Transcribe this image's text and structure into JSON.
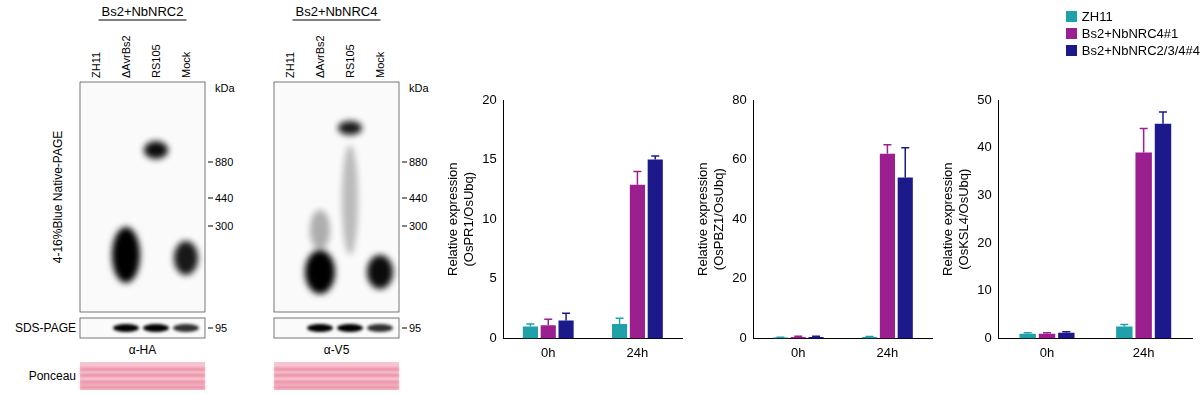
{
  "blots": {
    "row_labels": {
      "native": "4-16%Blue Native-PAGE",
      "sds": "SDS-PAGE",
      "stain": "Ponceau"
    },
    "marker_unit": "kDa",
    "panels": [
      {
        "title": "Bs2+NbNRC2",
        "lanes": [
          "ZH11",
          "ΔAvrBs2",
          "RS105",
          "Mock"
        ],
        "markers": [
          880,
          440,
          300
        ],
        "sds_marker": 95,
        "antibody": "α-HA"
      },
      {
        "title": "Bs2+NbNRC4",
        "lanes": [
          "ZH11",
          "ΔAvrBs2",
          "RS105",
          "Mock"
        ],
        "markers": [
          880,
          440,
          300
        ],
        "sds_marker": 95,
        "antibody": "α-V5"
      }
    ]
  },
  "chart_data": [
    {
      "type": "bar",
      "y_label": [
        "Relative expression",
        "(OsPR1/OsUbq)"
      ],
      "categories": [
        "0h",
        "24h"
      ],
      "series": [
        {
          "name": "ZH11",
          "color": "#20a0a8",
          "values": [
            1.0,
            1.2
          ],
          "errors": [
            0.2,
            0.5
          ]
        },
        {
          "name": "Bs2+NbNRC4#1",
          "color": "#9c1f8f",
          "values": [
            1.1,
            12.9
          ],
          "errors": [
            0.5,
            1.1
          ]
        },
        {
          "name": "Bs2+NbNRC2/3/4#4",
          "color": "#1c1a8a",
          "values": [
            1.5,
            15.0
          ],
          "errors": [
            0.6,
            0.3
          ]
        }
      ],
      "ylim": [
        0,
        20
      ],
      "yticks": [
        0,
        5,
        10,
        15,
        20
      ],
      "grid": false
    },
    {
      "type": "bar",
      "y_label": [
        "Relative expression",
        "(OsPBZ1/OsUbq)"
      ],
      "categories": [
        "0h",
        "24h"
      ],
      "series": [
        {
          "name": "ZH11",
          "color": "#20a0a8",
          "values": [
            0.3,
            0.5
          ],
          "errors": [
            0.1,
            0.1
          ]
        },
        {
          "name": "Bs2+NbNRC4#1",
          "color": "#9c1f8f",
          "values": [
            0.5,
            62
          ],
          "errors": [
            0.2,
            3
          ]
        },
        {
          "name": "Bs2+NbNRC2/3/4#4",
          "color": "#1c1a8a",
          "values": [
            0.5,
            54
          ],
          "errors": [
            0.2,
            10
          ]
        }
      ],
      "ylim": [
        0,
        80
      ],
      "yticks": [
        0,
        20,
        40,
        60,
        80
      ],
      "grid": false
    },
    {
      "type": "bar",
      "y_label": [
        "Relative expression",
        "(OsKSL4/OsUbq)"
      ],
      "categories": [
        "0h",
        "24h"
      ],
      "series": [
        {
          "name": "ZH11",
          "color": "#20a0a8",
          "values": [
            1.0,
            2.5
          ],
          "errors": [
            0.2,
            0.4
          ]
        },
        {
          "name": "Bs2+NbNRC4#1",
          "color": "#9c1f8f",
          "values": [
            1.0,
            39
          ],
          "errors": [
            0.2,
            5
          ]
        },
        {
          "name": "Bs2+NbNRC2/3/4#4",
          "color": "#1c1a8a",
          "values": [
            1.2,
            45
          ],
          "errors": [
            0.2,
            2.5
          ]
        }
      ],
      "ylim": [
        0,
        50
      ],
      "yticks": [
        0,
        10,
        20,
        30,
        40,
        50
      ],
      "grid": false,
      "legend": "top-right"
    }
  ]
}
